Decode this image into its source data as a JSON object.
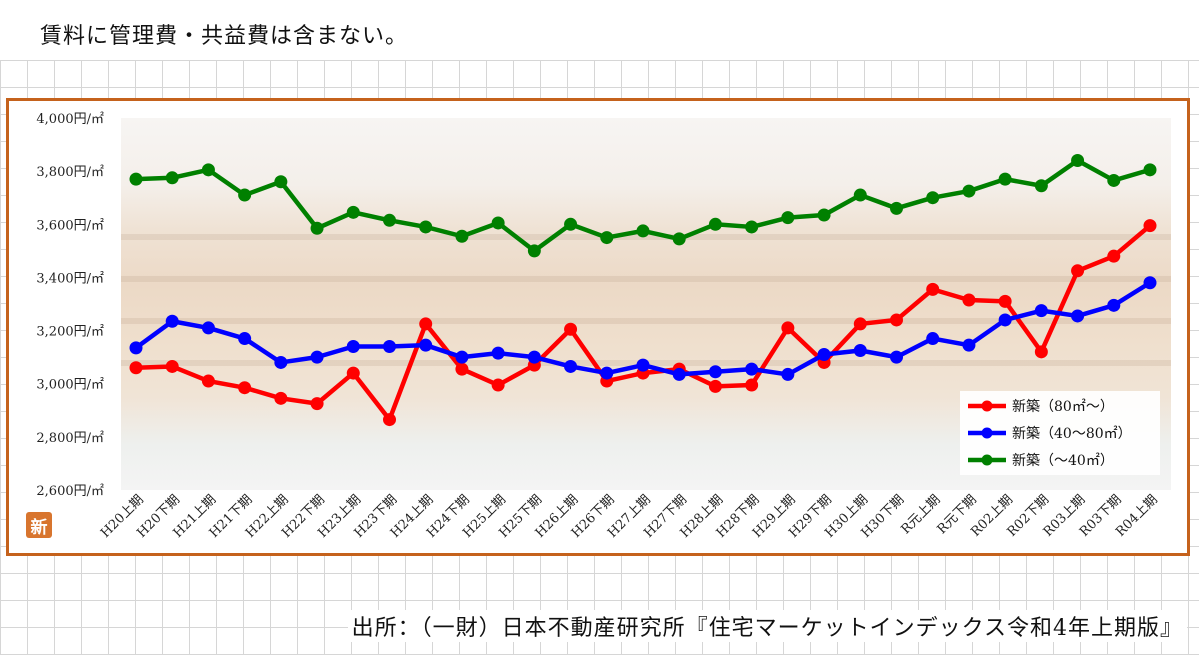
{
  "note": "賃料に管理費・共益費は含まない。",
  "source": "出所：（一財）日本不動産研究所『住宅マーケットインデックス令和4年上期版』",
  "logo_text": "新",
  "chart_data": {
    "type": "line",
    "ylim": [
      2600,
      4000
    ],
    "yticks": [
      2600,
      2800,
      3000,
      3200,
      3400,
      3600,
      3800,
      4000
    ],
    "ytick_labels": [
      "2,600円/㎡",
      "2,800円/㎡",
      "3,000円/㎡",
      "3,200円/㎡",
      "3,400円/㎡",
      "3,600円/㎡",
      "3,800円/㎡",
      "4,000円/㎡"
    ],
    "categories": [
      "H20上期",
      "H20下期",
      "H21上期",
      "H21下期",
      "H22上期",
      "H22下期",
      "H23上期",
      "H23下期",
      "H24上期",
      "H24下期",
      "H25上期",
      "H25下期",
      "H26上期",
      "H26下期",
      "H27上期",
      "H27下期",
      "H28上期",
      "H28下期",
      "H29上期",
      "H29下期",
      "H30上期",
      "H30下期",
      "R元上期",
      "R元下期",
      "R02上期",
      "R02下期",
      "R03上期",
      "R03下期",
      "R04上期"
    ],
    "legend_position": "bottom-right",
    "grid": false,
    "series": [
      {
        "name": "新築（80㎡～）",
        "color": "#ff0000",
        "values": [
          3060,
          3065,
          3010,
          2985,
          2945,
          2925,
          3040,
          2865,
          3225,
          3055,
          2995,
          3070,
          3205,
          3010,
          3040,
          3055,
          2990,
          2995,
          3210,
          3080,
          3225,
          3240,
          3355,
          3315,
          3310,
          3120,
          3425,
          3480,
          3595
        ]
      },
      {
        "name": "新築（40～80㎡）",
        "color": "#0000ff",
        "values": [
          3135,
          3235,
          3210,
          3170,
          3080,
          3100,
          3140,
          3140,
          3145,
          3100,
          3115,
          3100,
          3065,
          3040,
          3070,
          3035,
          3045,
          3055,
          3035,
          3110,
          3125,
          3100,
          3170,
          3145,
          3240,
          3275,
          3255,
          3295,
          3380
        ]
      },
      {
        "name": "新築（～40㎡）",
        "color": "#008000",
        "values": [
          3770,
          3775,
          3805,
          3710,
          3760,
          3585,
          3645,
          3615,
          3590,
          3555,
          3605,
          3500,
          3600,
          3550,
          3575,
          3545,
          3600,
          3590,
          3625,
          3635,
          3710,
          3660,
          3700,
          3725,
          3770,
          3745,
          3840,
          3765,
          3805
        ]
      }
    ]
  }
}
